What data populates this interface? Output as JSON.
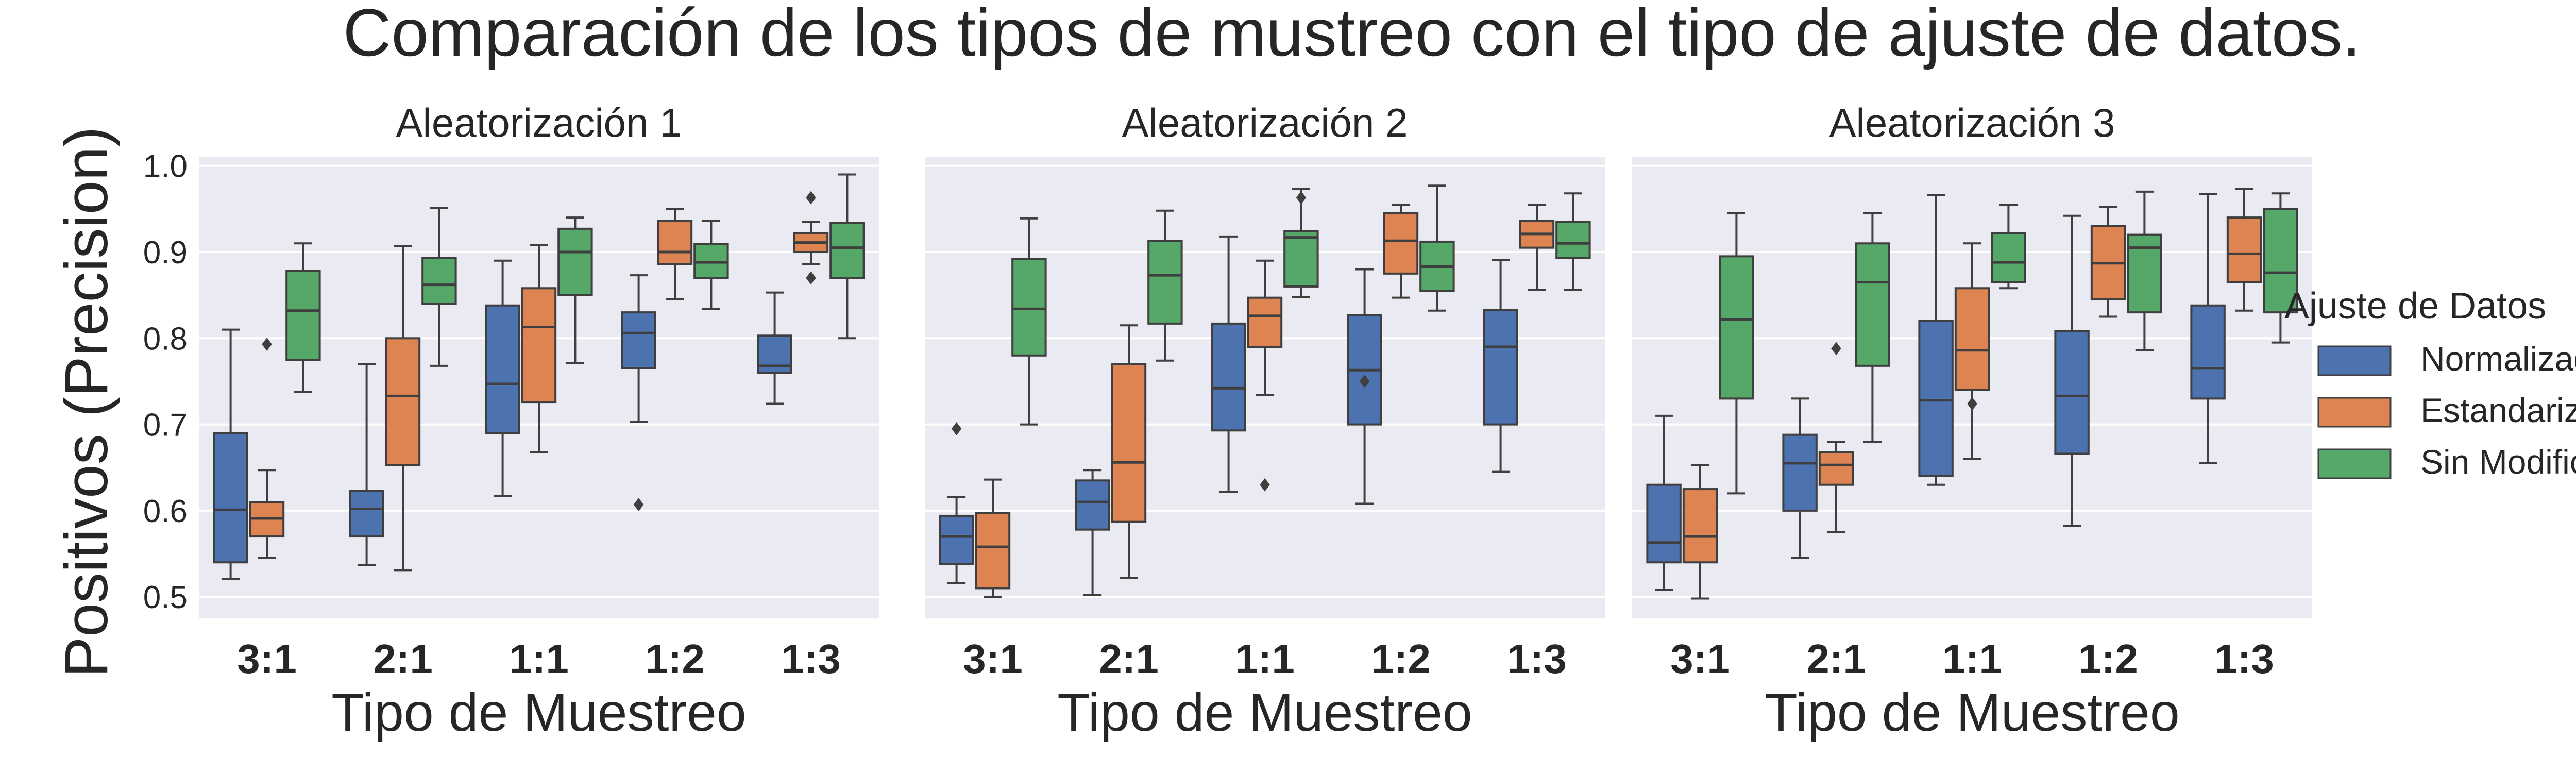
{
  "chart_data": {
    "type": "box",
    "title": "Comparación de los tipos de mustreo con el tipo de ajuste de datos.",
    "ylabel": "Positivos (Precision)",
    "xlabel": "Tipo de Muestreo",
    "ylim": [
      0.475,
      1.01
    ],
    "yticks": [
      0.5,
      0.6,
      0.7,
      0.8,
      0.9,
      1.0
    ],
    "ytick_labels": [
      "0.5",
      "0.6",
      "0.7",
      "0.8",
      "0.9",
      "1.0"
    ],
    "categories": [
      "3:1",
      "2:1",
      "1:1",
      "1:2",
      "1:3"
    ],
    "grid": true,
    "legend": {
      "title": "Ajuste de Datos",
      "placement": "right",
      "entries": [
        {
          "name": "Normalizados",
          "color": "#4c72b0"
        },
        {
          "name": "Estandarizados",
          "color": "#dd8452"
        },
        {
          "name": "Sin Modificación",
          "color": "#55a868"
        }
      ]
    },
    "panels": [
      {
        "title": "Aleatorización 1",
        "series": [
          {
            "name": "Normalizados",
            "boxes": [
              {
                "min": 0.521,
                "q1": 0.54,
                "median": 0.601,
                "q3": 0.69,
                "max": 0.81,
                "outliers": []
              },
              {
                "min": 0.537,
                "q1": 0.57,
                "median": 0.602,
                "q3": 0.623,
                "max": 0.77,
                "outliers": []
              },
              {
                "min": 0.617,
                "q1": 0.69,
                "median": 0.747,
                "q3": 0.838,
                "max": 0.89,
                "outliers": []
              },
              {
                "min": 0.703,
                "q1": 0.765,
                "median": 0.806,
                "q3": 0.83,
                "max": 0.873,
                "outliers": [
                  0.607
                ]
              },
              {
                "min": 0.724,
                "q1": 0.76,
                "median": 0.768,
                "q3": 0.803,
                "max": 0.853,
                "outliers": []
              }
            ]
          },
          {
            "name": "Estandarizados",
            "boxes": [
              {
                "min": 0.545,
                "q1": 0.57,
                "median": 0.591,
                "q3": 0.61,
                "max": 0.647,
                "outliers": [
                  0.793
                ]
              },
              {
                "min": 0.531,
                "q1": 0.653,
                "median": 0.733,
                "q3": 0.8,
                "max": 0.907,
                "outliers": []
              },
              {
                "min": 0.668,
                "q1": 0.726,
                "median": 0.813,
                "q3": 0.858,
                "max": 0.908,
                "outliers": []
              },
              {
                "min": 0.845,
                "q1": 0.886,
                "median": 0.9,
                "q3": 0.936,
                "max": 0.95,
                "outliers": []
              },
              {
                "min": 0.886,
                "q1": 0.9,
                "median": 0.911,
                "q3": 0.922,
                "max": 0.935,
                "outliers": [
                  0.963,
                  0.87
                ]
              }
            ]
          },
          {
            "name": "Sin Modificación",
            "boxes": [
              {
                "min": 0.738,
                "q1": 0.775,
                "median": 0.832,
                "q3": 0.878,
                "max": 0.91,
                "outliers": []
              },
              {
                "min": 0.768,
                "q1": 0.84,
                "median": 0.862,
                "q3": 0.893,
                "max": 0.951,
                "outliers": []
              },
              {
                "min": 0.771,
                "q1": 0.85,
                "median": 0.9,
                "q3": 0.927,
                "max": 0.94,
                "outliers": []
              },
              {
                "min": 0.834,
                "q1": 0.87,
                "median": 0.888,
                "q3": 0.909,
                "max": 0.936,
                "outliers": []
              },
              {
                "min": 0.8,
                "q1": 0.87,
                "median": 0.905,
                "q3": 0.934,
                "max": 0.99,
                "outliers": []
              }
            ]
          }
        ]
      },
      {
        "title": "Aleatorización 2",
        "series": [
          {
            "name": "Normalizados",
            "boxes": [
              {
                "min": 0.516,
                "q1": 0.538,
                "median": 0.57,
                "q3": 0.594,
                "max": 0.616,
                "outliers": [
                  0.695
                ]
              },
              {
                "min": 0.502,
                "q1": 0.578,
                "median": 0.61,
                "q3": 0.635,
                "max": 0.647,
                "outliers": []
              },
              {
                "min": 0.622,
                "q1": 0.693,
                "median": 0.742,
                "q3": 0.817,
                "max": 0.918,
                "outliers": []
              },
              {
                "min": 0.608,
                "q1": 0.7,
                "median": 0.763,
                "q3": 0.827,
                "max": 0.88,
                "outliers": [
                  0.75
                ]
              },
              {
                "min": 0.645,
                "q1": 0.7,
                "median": 0.79,
                "q3": 0.833,
                "max": 0.891,
                "outliers": []
              }
            ]
          },
          {
            "name": "Estandarizados",
            "boxes": [
              {
                "min": 0.5,
                "q1": 0.51,
                "median": 0.558,
                "q3": 0.597,
                "max": 0.636,
                "outliers": []
              },
              {
                "min": 0.522,
                "q1": 0.587,
                "median": 0.656,
                "q3": 0.77,
                "max": 0.815,
                "outliers": []
              },
              {
                "min": 0.734,
                "q1": 0.79,
                "median": 0.826,
                "q3": 0.847,
                "max": 0.89,
                "outliers": [
                  0.63
                ]
              },
              {
                "min": 0.847,
                "q1": 0.875,
                "median": 0.913,
                "q3": 0.945,
                "max": 0.955,
                "outliers": []
              },
              {
                "min": 0.856,
                "q1": 0.905,
                "median": 0.921,
                "q3": 0.936,
                "max": 0.955,
                "outliers": []
              }
            ]
          },
          {
            "name": "Sin Modificación",
            "boxes": [
              {
                "min": 0.7,
                "q1": 0.78,
                "median": 0.834,
                "q3": 0.892,
                "max": 0.939,
                "outliers": []
              },
              {
                "min": 0.774,
                "q1": 0.817,
                "median": 0.873,
                "q3": 0.913,
                "max": 0.948,
                "outliers": []
              },
              {
                "min": 0.848,
                "q1": 0.86,
                "median": 0.917,
                "q3": 0.924,
                "max": 0.973,
                "outliers": [
                  0.963
                ]
              },
              {
                "min": 0.832,
                "q1": 0.855,
                "median": 0.883,
                "q3": 0.912,
                "max": 0.977,
                "outliers": []
              },
              {
                "min": 0.856,
                "q1": 0.893,
                "median": 0.91,
                "q3": 0.935,
                "max": 0.968,
                "outliers": []
              }
            ]
          }
        ]
      },
      {
        "title": "Aleatorización 3",
        "series": [
          {
            "name": "Normalizados",
            "boxes": [
              {
                "min": 0.508,
                "q1": 0.54,
                "median": 0.563,
                "q3": 0.63,
                "max": 0.71,
                "outliers": []
              },
              {
                "min": 0.545,
                "q1": 0.6,
                "median": 0.655,
                "q3": 0.688,
                "max": 0.73,
                "outliers": []
              },
              {
                "min": 0.63,
                "q1": 0.64,
                "median": 0.728,
                "q3": 0.82,
                "max": 0.966,
                "outliers": []
              },
              {
                "min": 0.582,
                "q1": 0.666,
                "median": 0.733,
                "q3": 0.808,
                "max": 0.942,
                "outliers": []
              },
              {
                "min": 0.655,
                "q1": 0.73,
                "median": 0.765,
                "q3": 0.838,
                "max": 0.967,
                "outliers": []
              }
            ]
          },
          {
            "name": "Estandarizados",
            "boxes": [
              {
                "min": 0.498,
                "q1": 0.54,
                "median": 0.57,
                "q3": 0.625,
                "max": 0.653,
                "outliers": []
              },
              {
                "min": 0.575,
                "q1": 0.63,
                "median": 0.653,
                "q3": 0.668,
                "max": 0.68,
                "outliers": [
                  0.788
                ]
              },
              {
                "min": 0.66,
                "q1": 0.74,
                "median": 0.786,
                "q3": 0.858,
                "max": 0.91,
                "outliers": [
                  0.724
                ]
              },
              {
                "min": 0.825,
                "q1": 0.845,
                "median": 0.887,
                "q3": 0.93,
                "max": 0.952,
                "outliers": []
              },
              {
                "min": 0.832,
                "q1": 0.865,
                "median": 0.898,
                "q3": 0.94,
                "max": 0.973,
                "outliers": []
              }
            ]
          },
          {
            "name": "Sin Modificación",
            "boxes": [
              {
                "min": 0.62,
                "q1": 0.73,
                "median": 0.822,
                "q3": 0.895,
                "max": 0.945,
                "outliers": []
              },
              {
                "min": 0.68,
                "q1": 0.768,
                "median": 0.865,
                "q3": 0.91,
                "max": 0.945,
                "outliers": []
              },
              {
                "min": 0.858,
                "q1": 0.865,
                "median": 0.888,
                "q3": 0.922,
                "max": 0.955,
                "outliers": []
              },
              {
                "min": 0.786,
                "q1": 0.83,
                "median": 0.905,
                "q3": 0.92,
                "max": 0.97,
                "outliers": []
              },
              {
                "min": 0.795,
                "q1": 0.83,
                "median": 0.876,
                "q3": 0.95,
                "max": 0.968,
                "outliers": []
              }
            ]
          }
        ]
      }
    ]
  }
}
